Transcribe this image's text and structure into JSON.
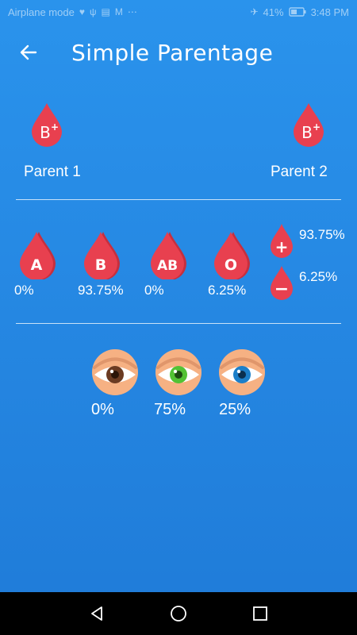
{
  "status_bar": {
    "left_text": "Airplane mode",
    "battery": "41%",
    "time": "3:48 PM",
    "icons": [
      "heart-icon",
      "usb-icon",
      "news-icon",
      "gmail-icon",
      "more-icon",
      "airplane-icon",
      "battery-icon"
    ]
  },
  "header": {
    "title": "Simple Parentage",
    "back_icon": "arrow-left-icon"
  },
  "parents": [
    {
      "label": "Parent 1",
      "type": "B",
      "sign": "+"
    },
    {
      "label": "Parent 2",
      "type": "B",
      "sign": "+"
    }
  ],
  "blood_results": [
    {
      "type": "A",
      "value": "0%"
    },
    {
      "type": "B",
      "value": "93.75%"
    },
    {
      "type": "AB",
      "value": "0%"
    },
    {
      "type": "O",
      "value": "6.25%"
    }
  ],
  "rh_results": [
    {
      "sign": "+",
      "value": "93.75%"
    },
    {
      "sign": "−",
      "value": "6.25%"
    }
  ],
  "eye_results": [
    {
      "color": "brown",
      "value": "0%"
    },
    {
      "color": "green",
      "value": "75%"
    },
    {
      "color": "blue",
      "value": "25%"
    }
  ],
  "colors": {
    "drop": "#e8404f",
    "drop_shade": "#c62f3e",
    "background_top": "#2a93ec",
    "background_bottom": "#1f7bd8",
    "iris_brown": "#6b3b22",
    "iris_green": "#52c234",
    "iris_blue": "#1c7fc9"
  },
  "nav": {
    "back_icon": "nav-back-icon",
    "home_icon": "nav-home-icon",
    "recents_icon": "nav-recents-icon"
  }
}
